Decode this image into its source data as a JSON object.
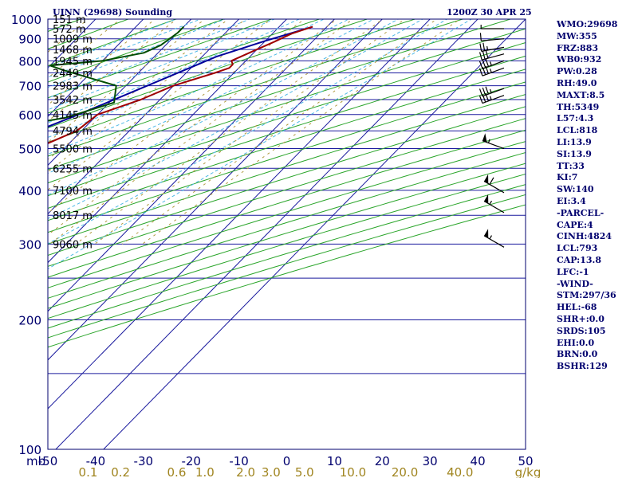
{
  "header": {
    "station": "UINN (29698) Sounding",
    "time": "1200Z 30 APR 25"
  },
  "indices": [
    "WMO:29698",
    "MW:355",
    "FRZ:883",
    "WB0:932",
    "PW:0.28",
    "RH:49.0",
    "MAXT:8.5",
    "TH:5349",
    "L57:4.3",
    "LCL:818",
    "LI:13.9",
    "SI:13.9",
    "TT:33",
    "KI:7",
    "SW:140",
    "EI:3.4",
    "-PARCEL-",
    "CAPE:4",
    "CINH:4824",
    "LCL:793",
    "CAP:13.8",
    "LFC:-1",
    "-WIND-",
    "STM:297/36",
    "HEL:-68",
    "SHR+:0.0",
    "SRDS:105",
    "EHI:0.0",
    "BRN:0.0",
    "BSHR:129"
  ],
  "chart_data": {
    "type": "skew-t",
    "pressure_axis": {
      "scale": "log",
      "range_hpa": [
        1000,
        100
      ],
      "tick_labels": [
        "100",
        "200",
        "300",
        "400",
        "500",
        "600",
        "700",
        "800",
        "900",
        "1000"
      ],
      "unit_label": "mb"
    },
    "temperature_axis": {
      "range_c": [
        -50,
        50
      ],
      "tick_labels": [
        "-50",
        "-40",
        "-30",
        "-20",
        "-10",
        "0",
        "10",
        "20",
        "30",
        "40",
        "50"
      ]
    },
    "mixing_ratio_labels": [
      "0.1",
      "0.2",
      "0.6",
      "1.0",
      "2.0",
      "3.0",
      "5.0",
      "10.0",
      "20.0",
      "40.0"
    ],
    "mixing_ratio_unit": "g/kg",
    "height_labels": [
      {
        "p": 300,
        "text": "9060 m"
      },
      {
        "p": 350,
        "text": "8017 m"
      },
      {
        "p": 400,
        "text": "7100 m"
      },
      {
        "p": 450,
        "text": "6255 m"
      },
      {
        "p": 500,
        "text": "5500 m"
      },
      {
        "p": 550,
        "text": "4794 m"
      },
      {
        "p": 600,
        "text": "4145 m"
      },
      {
        "p": 650,
        "text": "3542 m"
      },
      {
        "p": 700,
        "text": "2983 m"
      },
      {
        "p": 750,
        "text": "2449 m"
      },
      {
        "p": 800,
        "text": "1945 m"
      },
      {
        "p": 850,
        "text": "1468 m"
      },
      {
        "p": 900,
        "text": "1009 m"
      },
      {
        "p": 950,
        "text": "572 m"
      },
      {
        "p": 1000,
        "text": "151 m"
      }
    ],
    "temperature_profile": [
      {
        "p": 960,
        "t": 7
      },
      {
        "p": 925,
        "t": 4
      },
      {
        "p": 885,
        "t": 2
      },
      {
        "p": 850,
        "t": 0
      },
      {
        "p": 800,
        "t": -3
      },
      {
        "p": 785,
        "t": -2
      },
      {
        "p": 770,
        "t": -2
      },
      {
        "p": 750,
        "t": -4
      },
      {
        "p": 700,
        "t": -10
      },
      {
        "p": 650,
        "t": -14
      },
      {
        "p": 600,
        "t": -20
      },
      {
        "p": 550,
        "t": -21
      },
      {
        "p": 500,
        "t": -26
      },
      {
        "p": 450,
        "t": -34
      },
      {
        "p": 400,
        "t": -43
      },
      {
        "p": 350,
        "t": -51
      },
      {
        "p": 300,
        "t": -52
      },
      {
        "p": 280,
        "t": -50
      },
      {
        "p": 255,
        "t": -51
      }
    ],
    "dewpoint_profile": [
      {
        "p": 960,
        "t": -20
      },
      {
        "p": 930,
        "t": -20
      },
      {
        "p": 870,
        "t": -21
      },
      {
        "p": 835,
        "t": -23
      },
      {
        "p": 800,
        "t": -30
      },
      {
        "p": 780,
        "t": -40
      },
      {
        "p": 760,
        "t": -36
      },
      {
        "p": 700,
        "t": -22
      },
      {
        "p": 640,
        "t": -19
      },
      {
        "p": 590,
        "t": -26
      },
      {
        "p": 545,
        "t": -41
      },
      {
        "p": 510,
        "t": -59
      },
      {
        "p": 490,
        "t": -60
      },
      {
        "p": 430,
        "t": -63
      },
      {
        "p": 400,
        "t": -66
      },
      {
        "p": 360,
        "t": -70
      },
      {
        "p": 315,
        "t": -71
      },
      {
        "p": 300,
        "t": -73
      },
      {
        "p": 280,
        "t": -75
      },
      {
        "p": 255,
        "t": -80
      }
    ],
    "parcel_profile": [
      {
        "p": 960,
        "t": 7
      },
      {
        "p": 890,
        "t": 0
      },
      {
        "p": 818,
        "t": -7
      },
      {
        "p": 700,
        "t": -15.5
      },
      {
        "p": 600,
        "t": -24
      },
      {
        "p": 500,
        "t": -35
      },
      {
        "p": 400,
        "t": -50
      },
      {
        "p": 300,
        "t": -68
      },
      {
        "p": 200,
        "t": -95
      },
      {
        "p": 150,
        "t": -115
      },
      {
        "p": 130,
        "t": -125
      }
    ],
    "wind_barbs": [
      {
        "p": 295,
        "dir": 300,
        "speed_kt": 55
      },
      {
        "p": 355,
        "dir": 300,
        "speed_kt": 55
      },
      {
        "p": 395,
        "dir": 300,
        "speed_kt": 60
      },
      {
        "p": 500,
        "dir": 290,
        "speed_kt": 55
      },
      {
        "p": 665,
        "dir": 250,
        "speed_kt": 35
      },
      {
        "p": 690,
        "dir": 250,
        "speed_kt": 35
      },
      {
        "p": 770,
        "dir": 250,
        "speed_kt": 35
      },
      {
        "p": 800,
        "dir": 250,
        "speed_kt": 35
      },
      {
        "p": 830,
        "dir": 255,
        "speed_kt": 30
      },
      {
        "p": 860,
        "dir": 260,
        "speed_kt": 25
      },
      {
        "p": 900,
        "dir": 265,
        "speed_kt": 10
      },
      {
        "p": 950,
        "dir": 270,
        "speed_kt": 5
      }
    ],
    "colors": {
      "frame": "#00006e",
      "isobar": "#1a1a9e",
      "isotherm": "#1a1a9e",
      "dry_adiabat": "#2aa52a",
      "moist_adiabat": "#4db8e6",
      "mixing_ratio": "#b09a40",
      "temperature": "#a00000",
      "dewpoint": "#004d00",
      "parcel": "#00009a",
      "wind_barb": "#000000",
      "mixing_label": "#a08520"
    }
  }
}
